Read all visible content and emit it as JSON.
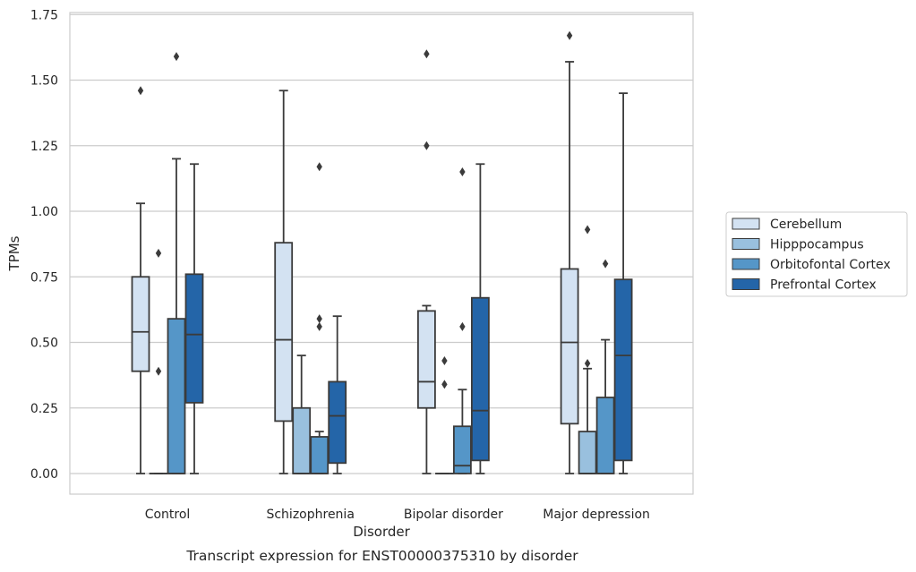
{
  "chart_data": {
    "type": "box",
    "title": "",
    "caption": "Transcript expression for ENST00000375310 by disorder",
    "xlabel": "Disorder",
    "ylabel": "TPMs",
    "ylim": [
      -0.08,
      1.76
    ],
    "yticks": [
      "0.00",
      "0.25",
      "0.50",
      "0.75",
      "1.00",
      "1.25",
      "1.50",
      "1.75"
    ],
    "ytick_values": [
      0,
      0.25,
      0.5,
      0.75,
      1.0,
      1.25,
      1.5,
      1.75
    ],
    "grid": "horizontal",
    "legend_position": "right",
    "categories": [
      "Control",
      "Schizophrenia",
      "Bipolar disorder",
      "Major depression"
    ],
    "series": [
      {
        "name": "Cerebellum",
        "color": "#d3e2f2",
        "boxes": [
          {
            "q1": 0.39,
            "median": 0.54,
            "q3": 0.75,
            "whisker_low": 0.0,
            "whisker_high": 1.03,
            "outliers": [
              1.46
            ]
          },
          {
            "q1": 0.2,
            "median": 0.51,
            "q3": 0.88,
            "whisker_low": 0.0,
            "whisker_high": 1.46,
            "outliers": []
          },
          {
            "q1": 0.25,
            "median": 0.35,
            "q3": 0.62,
            "whisker_low": 0.0,
            "whisker_high": 0.64,
            "outliers": [
              1.25,
              1.6
            ]
          },
          {
            "q1": 0.19,
            "median": 0.5,
            "q3": 0.78,
            "whisker_low": 0.0,
            "whisker_high": 1.57,
            "outliers": [
              1.67
            ]
          }
        ]
      },
      {
        "name": "Hipppocampus",
        "color": "#99c0de",
        "boxes": [
          {
            "q1": 0.0,
            "median": 0.0,
            "q3": 0.0,
            "whisker_low": 0.0,
            "whisker_high": 0.0,
            "outliers": [
              0.39,
              0.84
            ]
          },
          {
            "q1": 0.0,
            "median": 0.0,
            "q3": 0.25,
            "whisker_low": 0.0,
            "whisker_high": 0.45,
            "outliers": []
          },
          {
            "q1": 0.0,
            "median": 0.0,
            "q3": 0.0,
            "whisker_low": 0.0,
            "whisker_high": 0.0,
            "outliers": [
              0.34,
              0.43
            ]
          },
          {
            "q1": 0.0,
            "median": 0.0,
            "q3": 0.16,
            "whisker_low": 0.0,
            "whisker_high": 0.4,
            "outliers": [
              0.42,
              0.93
            ]
          }
        ]
      },
      {
        "name": "Orbitofontal Cortex",
        "color": "#5596c8",
        "boxes": [
          {
            "q1": 0.0,
            "median": 0.0,
            "q3": 0.59,
            "whisker_low": 0.0,
            "whisker_high": 1.2,
            "outliers": [
              1.59
            ]
          },
          {
            "q1": 0.0,
            "median": 0.0,
            "q3": 0.14,
            "whisker_low": 0.0,
            "whisker_high": 0.16,
            "outliers": [
              0.56,
              0.59,
              1.17
            ]
          },
          {
            "q1": 0.0,
            "median": 0.03,
            "q3": 0.18,
            "whisker_low": 0.0,
            "whisker_high": 0.32,
            "outliers": [
              0.56,
              1.15
            ]
          },
          {
            "q1": 0.0,
            "median": 0.0,
            "q3": 0.29,
            "whisker_low": 0.0,
            "whisker_high": 0.51,
            "outliers": [
              0.8
            ]
          }
        ]
      },
      {
        "name": "Prefrontal Cortex",
        "color": "#2465a8",
        "boxes": [
          {
            "q1": 0.27,
            "median": 0.53,
            "q3": 0.76,
            "whisker_low": 0.0,
            "whisker_high": 1.18,
            "outliers": []
          },
          {
            "q1": 0.04,
            "median": 0.22,
            "q3": 0.35,
            "whisker_low": 0.0,
            "whisker_high": 0.6,
            "outliers": []
          },
          {
            "q1": 0.05,
            "median": 0.24,
            "q3": 0.67,
            "whisker_low": 0.0,
            "whisker_high": 1.18,
            "outliers": []
          },
          {
            "q1": 0.05,
            "median": 0.45,
            "q3": 0.74,
            "whisker_low": 0.0,
            "whisker_high": 1.45,
            "outliers": []
          }
        ]
      }
    ]
  }
}
